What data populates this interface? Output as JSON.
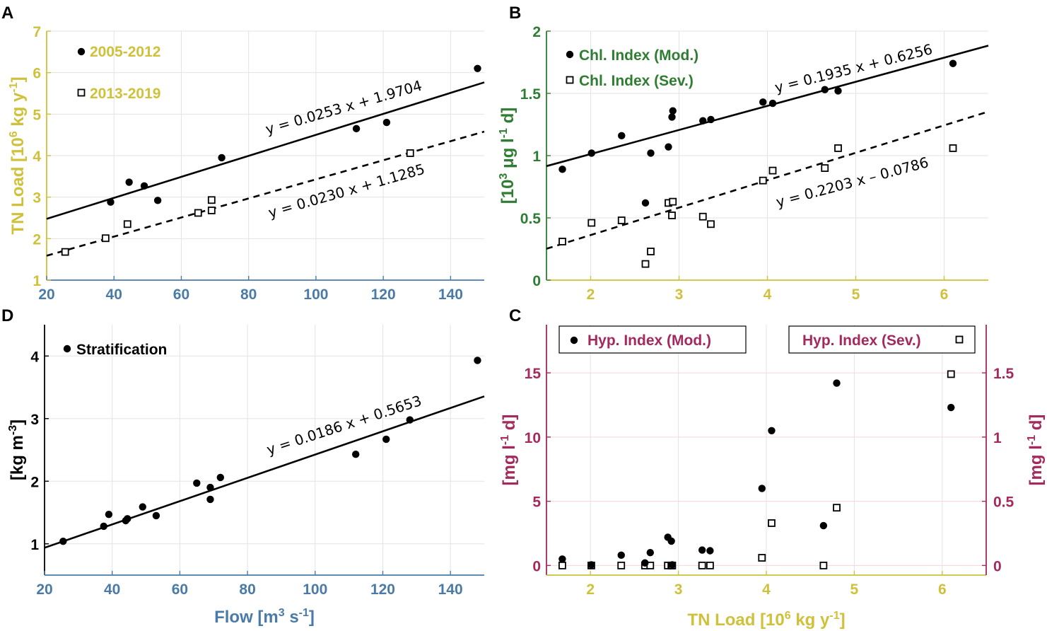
{
  "colors": {
    "yellow": "#cfc13a",
    "blue": "#4a7ba8",
    "green": "#2e7d32",
    "magenta": "#a3295f",
    "black": "#000000"
  },
  "chart_data": [
    {
      "panel": "A",
      "type": "scatter",
      "xlabel": "",
      "ylabel": "TN Load [10^6 kg y^-1]",
      "xlim": [
        20,
        150
      ],
      "ylim": [
        1,
        7
      ],
      "xticks": [
        20,
        40,
        60,
        80,
        100,
        120,
        140
      ],
      "yticks": [
        1,
        2,
        3,
        4,
        5,
        6,
        7
      ],
      "series": [
        {
          "name": "2005-2012",
          "marker": "filled-circle",
          "x": [
            39,
            44.5,
            49,
            53,
            72,
            112,
            121,
            148
          ],
          "y": [
            2.88,
            3.36,
            3.27,
            2.92,
            3.95,
            4.65,
            4.8,
            6.1
          ]
        },
        {
          "name": "2013-2019",
          "marker": "open-square",
          "x": [
            25.5,
            37.5,
            44,
            65,
            69,
            69,
            128
          ],
          "y": [
            1.68,
            2.01,
            2.35,
            2.62,
            2.68,
            2.93,
            4.06
          ]
        }
      ],
      "fits": [
        {
          "label": "y = 0.0253 x + 1.9704",
          "slope": 0.0253,
          "intercept": 1.9704,
          "style": "solid"
        },
        {
          "label": "y = 0.0230 x + 1.1285",
          "slope": 0.023,
          "intercept": 1.1285,
          "style": "dashed"
        }
      ]
    },
    {
      "panel": "B",
      "type": "scatter",
      "xlabel": "",
      "ylabel": "[10^3 μg l^-1 d]",
      "xlim": [
        1.5,
        6.5
      ],
      "ylim": [
        0,
        2
      ],
      "xticks": [
        2,
        3,
        4,
        5,
        6
      ],
      "yticks": [
        0,
        0.5,
        1,
        1.5,
        2
      ],
      "series": [
        {
          "name": "Chl. Index (Mod.)",
          "marker": "filled-circle",
          "x": [
            1.68,
            2.01,
            2.35,
            2.62,
            2.68,
            2.88,
            2.92,
            2.93,
            3.27,
            3.36,
            3.95,
            4.06,
            4.65,
            4.8,
            6.1
          ],
          "y": [
            0.89,
            1.02,
            1.16,
            0.62,
            1.02,
            1.07,
            1.31,
            1.36,
            1.28,
            1.29,
            1.43,
            1.42,
            1.53,
            1.52,
            1.74
          ]
        },
        {
          "name": "Chl. Index (Sev.)",
          "marker": "open-square",
          "x": [
            1.68,
            2.01,
            2.35,
            2.62,
            2.68,
            2.88,
            2.92,
            2.93,
            3.27,
            3.36,
            3.95,
            4.06,
            4.65,
            4.8,
            6.1
          ],
          "y": [
            0.31,
            0.46,
            0.48,
            0.13,
            0.23,
            0.62,
            0.52,
            0.63,
            0.51,
            0.45,
            0.8,
            0.88,
            0.9,
            1.06,
            1.06
          ]
        }
      ],
      "fits": [
        {
          "label": "y = 0.1935 x + 0.6256",
          "slope": 0.1935,
          "intercept": 0.6256,
          "style": "solid"
        },
        {
          "label": "y = 0.2203 x – 0.0786",
          "slope": 0.2203,
          "intercept": -0.0786,
          "style": "dashed"
        }
      ]
    },
    {
      "panel": "D",
      "type": "scatter",
      "xlabel": "Flow [m^3 s^-1]",
      "ylabel": "[kg m^-3]",
      "xlim": [
        20,
        150
      ],
      "ylim": [
        0.5,
        4.5
      ],
      "xticks": [
        20,
        40,
        60,
        80,
        100,
        120,
        140
      ],
      "yticks": [
        1,
        2,
        3,
        4
      ],
      "series": [
        {
          "name": "Stratification",
          "marker": "filled-circle",
          "x": [
            25.5,
            37.5,
            39,
            44,
            44.5,
            49,
            53,
            65,
            69,
            69,
            72,
            112,
            121,
            128,
            148
          ],
          "y": [
            1.04,
            1.28,
            1.47,
            1.37,
            1.4,
            1.59,
            1.45,
            1.97,
            1.9,
            1.71,
            2.06,
            2.43,
            2.67,
            2.98,
            3.93
          ]
        }
      ],
      "fits": [
        {
          "label": "y = 0.0186 x + 0.5653",
          "slope": 0.0186,
          "intercept": 0.5653,
          "style": "solid"
        }
      ]
    },
    {
      "panel": "C",
      "type": "scatter",
      "xlabel": "TN Load [10^6 kg y^-1]",
      "ylabel": "[mg l^-1 d]",
      "ylabel_right": "[mg l^-1 d]",
      "xlim": [
        1.5,
        6.5
      ],
      "ylim": [
        -0.75,
        18.75
      ],
      "ylim_right": [
        -0.075,
        1.875
      ],
      "xticks": [
        2,
        3,
        4,
        5,
        6
      ],
      "yticks": [
        0,
        5,
        10,
        15
      ],
      "yticks_right": [
        0,
        0.5,
        1,
        1.5
      ],
      "series": [
        {
          "name": "Hyp. Index (Mod.)",
          "marker": "filled-circle",
          "axis": "left",
          "x": [
            1.68,
            2.01,
            2.35,
            2.62,
            2.68,
            2.88,
            2.92,
            2.93,
            3.27,
            3.36,
            3.95,
            4.06,
            4.65,
            4.8,
            6.1
          ],
          "y": [
            0.5,
            0.05,
            0.8,
            0.2,
            1.0,
            2.2,
            1.9,
            0.05,
            1.2,
            1.15,
            6.0,
            10.5,
            3.1,
            14.2,
            12.3
          ]
        },
        {
          "name": "Hyp. Index (Sev.)",
          "marker": "open-square",
          "axis": "right",
          "x": [
            1.68,
            2.01,
            2.35,
            2.62,
            2.68,
            2.88,
            2.92,
            2.93,
            3.27,
            3.36,
            3.95,
            4.06,
            4.65,
            4.8,
            6.1
          ],
          "y": [
            0,
            0,
            0,
            0,
            0,
            0,
            0,
            0,
            0,
            0,
            0.06,
            0.33,
            0,
            0.45,
            1.49
          ]
        }
      ]
    }
  ],
  "panel_labels": [
    "A",
    "B",
    "D",
    "C"
  ],
  "ylabels": {
    "A": {
      "main": "TN Load [10",
      "sup1": "6",
      "mid": " kg y",
      "sup2": "-1",
      "end": "]"
    },
    "B": {
      "main": "[10",
      "sup1": "3",
      "mid": " μg l",
      "sup2": "-1",
      "end": " d]"
    },
    "D": {
      "main": "[kg m",
      "sup1": "-3",
      "end": "]"
    },
    "C_left": {
      "main": "[mg l",
      "sup1": "-1",
      "end": " d]"
    },
    "C_right": {
      "main": "[mg l",
      "sup1": "-1",
      "end": " d]"
    }
  },
  "xlabels": {
    "D": {
      "main": "Flow [m",
      "sup1": "3",
      "mid": " s",
      "sup2": "-1",
      "end": "]"
    },
    "C": {
      "main": "TN Load [10",
      "sup1": "6",
      "mid": " kg y",
      "sup2": "-1",
      "end": "]"
    }
  }
}
